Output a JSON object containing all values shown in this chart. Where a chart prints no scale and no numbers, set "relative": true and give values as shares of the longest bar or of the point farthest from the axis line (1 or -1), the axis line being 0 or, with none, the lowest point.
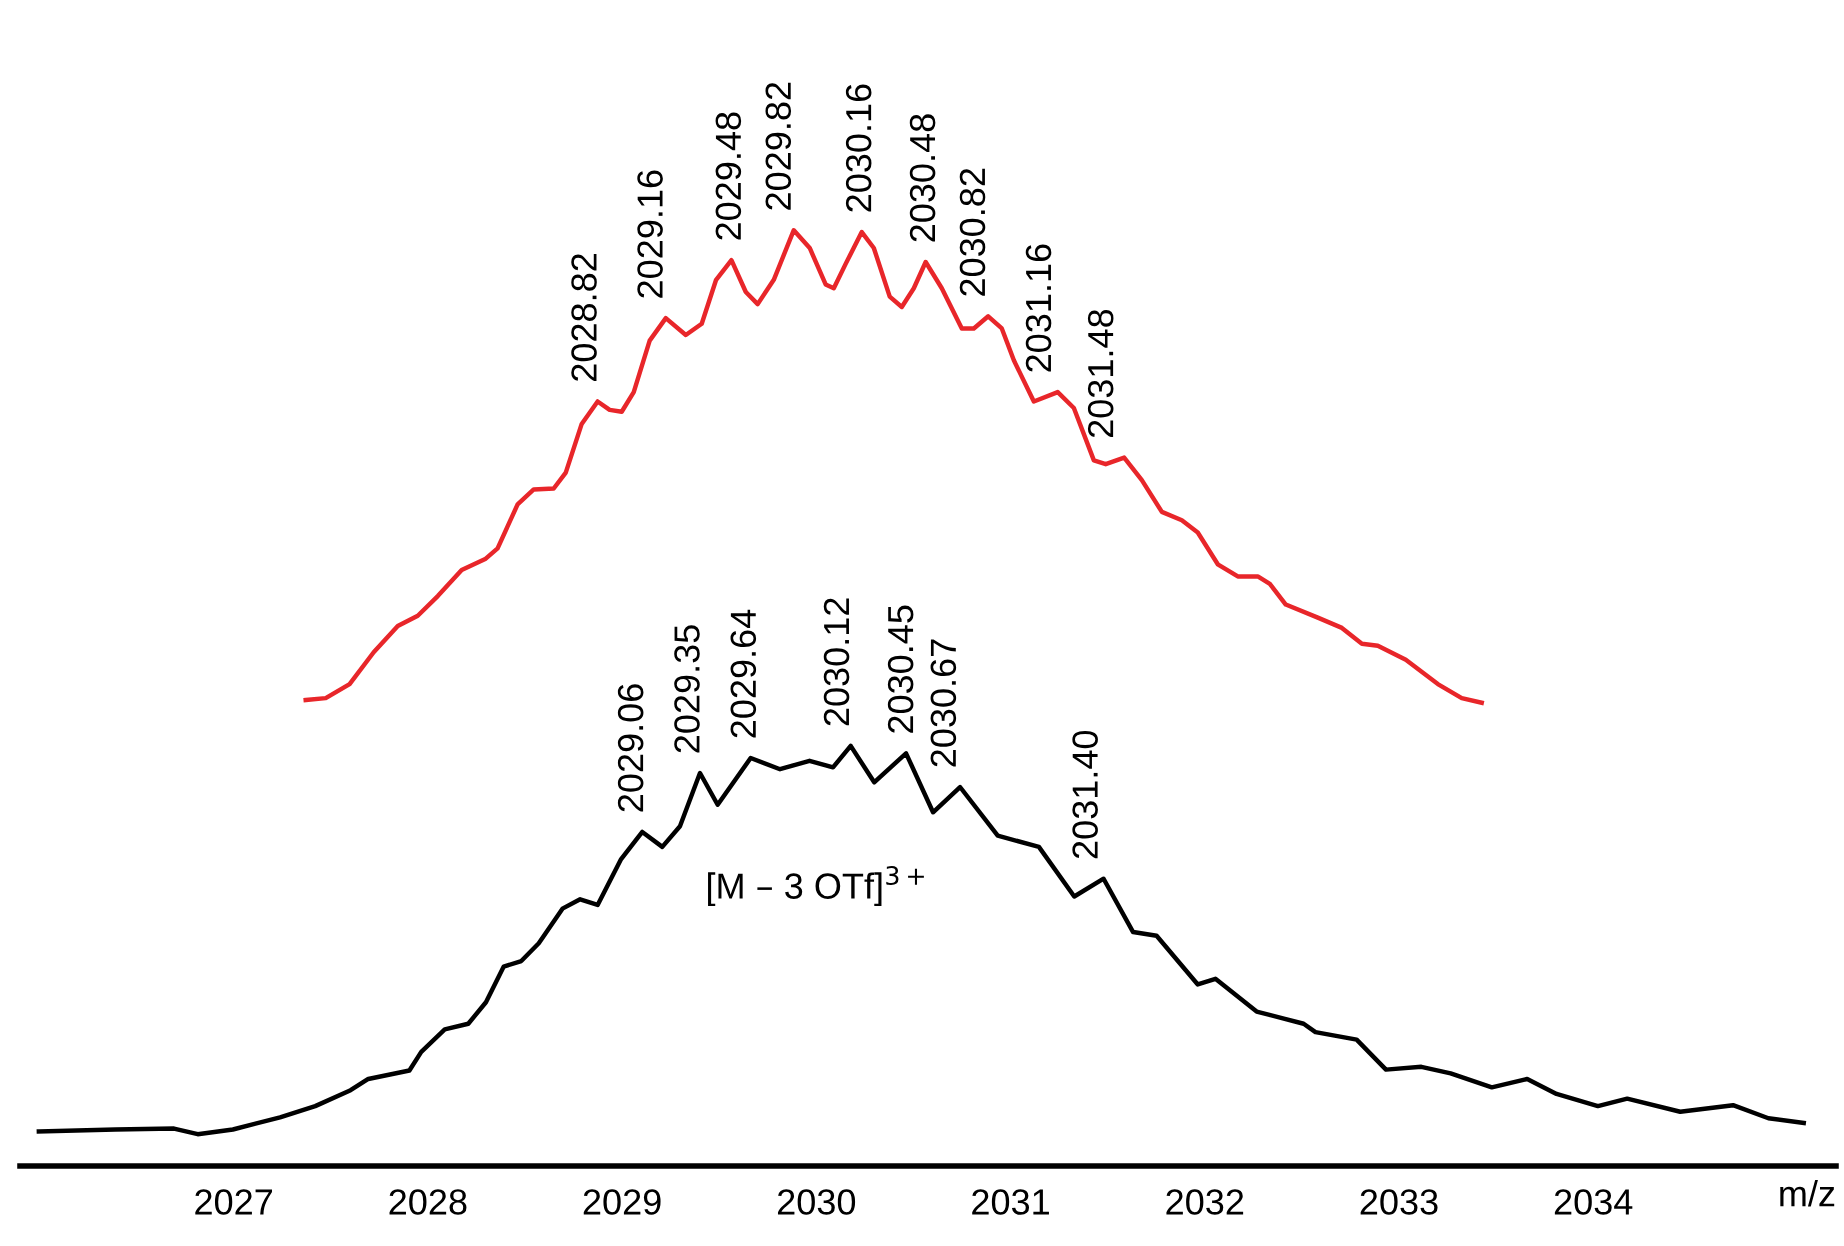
{
  "chart_data": {
    "type": "line",
    "relative": true,
    "xlabel": "m/z",
    "xlim": [
      2025.9,
      2035.25
    ],
    "xticks": [
      2027,
      2028,
      2029,
      2030,
      2031,
      2032,
      2033,
      2034
    ],
    "grid": false,
    "legend": false,
    "marker": "none",
    "line_style": "solid",
    "tick_labels": "x",
    "series": [
      {
        "color": "#e8262a",
        "x": [
          2027.371,
          2027.474,
          2027.597,
          2027.721,
          2027.845,
          2027.948,
          2028.051,
          2028.174,
          2028.298,
          2028.359,
          2028.462,
          2028.545,
          2028.648,
          2028.71,
          2028.792,
          2028.874,
          2028.936,
          2028.998,
          2029.06,
          2029.142,
          2029.225,
          2029.328,
          2029.41,
          2029.484,
          2029.563,
          2029.637,
          2029.698,
          2029.781,
          2029.884,
          2029.966,
          2030.048,
          2030.09,
          2030.151,
          2030.234,
          2030.296,
          2030.378,
          2030.44,
          2030.502,
          2030.563,
          2030.646,
          2030.749,
          2030.811,
          2030.885,
          2030.955,
          2031.017,
          2031.12,
          2031.243,
          2031.326,
          2031.429,
          2031.49,
          2031.585,
          2031.676,
          2031.779,
          2031.882,
          2031.964,
          2032.067,
          2032.17,
          2032.273,
          2032.335,
          2032.417,
          2032.582,
          2032.706,
          2032.809,
          2032.891,
          2033.035,
          2033.2,
          2033.323,
          2033.426
        ],
        "values": [
          0.498,
          0.5,
          0.515,
          0.549,
          0.577,
          0.588,
          0.609,
          0.637,
          0.649,
          0.66,
          0.707,
          0.723,
          0.724,
          0.741,
          0.793,
          0.817,
          0.808,
          0.806,
          0.827,
          0.882,
          0.906,
          0.888,
          0.9,
          0.947,
          0.968,
          0.934,
          0.921,
          0.947,
          1.0,
          0.981,
          0.942,
          0.938,
          0.964,
          0.998,
          0.981,
          0.929,
          0.918,
          0.938,
          0.966,
          0.938,
          0.895,
          0.895,
          0.908,
          0.895,
          0.861,
          0.817,
          0.827,
          0.81,
          0.754,
          0.75,
          0.757,
          0.733,
          0.699,
          0.69,
          0.677,
          0.643,
          0.63,
          0.63,
          0.622,
          0.6,
          0.586,
          0.575,
          0.558,
          0.556,
          0.541,
          0.515,
          0.5,
          0.495
        ]
      },
      {
        "color": "#000000",
        "x": [
          2025.997,
          2026.391,
          2026.693,
          2026.815,
          2026.996,
          2027.239,
          2027.42,
          2027.602,
          2027.693,
          2027.905,
          2027.966,
          2028.087,
          2028.208,
          2028.299,
          2028.39,
          2028.481,
          2028.571,
          2028.693,
          2028.784,
          2028.874,
          2028.995,
          2029.104,
          2029.207,
          2029.298,
          2029.401,
          2029.492,
          2029.662,
          2029.813,
          2029.965,
          2030.086,
          2030.177,
          2030.298,
          2030.462,
          2030.601,
          2030.74,
          2030.934,
          2031.146,
          2031.328,
          2031.479,
          2031.631,
          2031.752,
          2031.964,
          2032.055,
          2032.267,
          2032.509,
          2032.57,
          2032.782,
          2032.933,
          2033.115,
          2033.266,
          2033.478,
          2033.66,
          2033.811,
          2034.024,
          2034.175,
          2034.448,
          2034.72,
          2034.902,
          2035.084
        ],
        "values": [
          0.037,
          0.039,
          0.04,
          0.034,
          0.039,
          0.052,
          0.064,
          0.081,
          0.093,
          0.102,
          0.122,
          0.146,
          0.152,
          0.175,
          0.213,
          0.219,
          0.238,
          0.275,
          0.285,
          0.279,
          0.328,
          0.357,
          0.341,
          0.363,
          0.42,
          0.386,
          0.436,
          0.424,
          0.433,
          0.426,
          0.449,
          0.41,
          0.441,
          0.378,
          0.405,
          0.353,
          0.341,
          0.288,
          0.307,
          0.25,
          0.246,
          0.194,
          0.2,
          0.165,
          0.152,
          0.143,
          0.135,
          0.103,
          0.106,
          0.099,
          0.084,
          0.093,
          0.077,
          0.064,
          0.072,
          0.058,
          0.065,
          0.051,
          0.046
        ]
      }
    ],
    "annotations": [
      {
        "text": "2028.82",
        "x": 2028.82,
        "y": 0.817
      },
      {
        "text": "2029.16",
        "x": 2029.16,
        "y": 0.906
      },
      {
        "text": "2029.48",
        "x": 2029.563,
        "y": 0.968
      },
      {
        "text": "2029.82",
        "x": 2029.82,
        "y": 1.0
      },
      {
        "text": "2030.16",
        "x": 2030.234,
        "y": 0.998
      },
      {
        "text": "2030.48",
        "x": 2030.563,
        "y": 0.966
      },
      {
        "text": "2030.82",
        "x": 2030.82,
        "y": 0.908
      },
      {
        "text": "2031.16",
        "x": 2031.16,
        "y": 0.827
      },
      {
        "text": "2031.48",
        "x": 2031.48,
        "y": 0.757
      },
      {
        "text": "2029.06",
        "x": 2029.06,
        "y": 0.357
      },
      {
        "text": "2029.35",
        "x": 2029.35,
        "y": 0.42
      },
      {
        "text": "2029.64",
        "x": 2029.64,
        "y": 0.436
      },
      {
        "text": "2030.12",
        "x": 2030.12,
        "y": 0.449
      },
      {
        "text": "2030.45",
        "x": 2030.45,
        "y": 0.441
      },
      {
        "text": "2030.67",
        "x": 2030.67,
        "y": 0.405
      },
      {
        "text": "2031.40",
        "x": 2031.4,
        "y": 0.307
      },
      "[M – 3 OTf]$^{3+}$"
    ]
  }
}
